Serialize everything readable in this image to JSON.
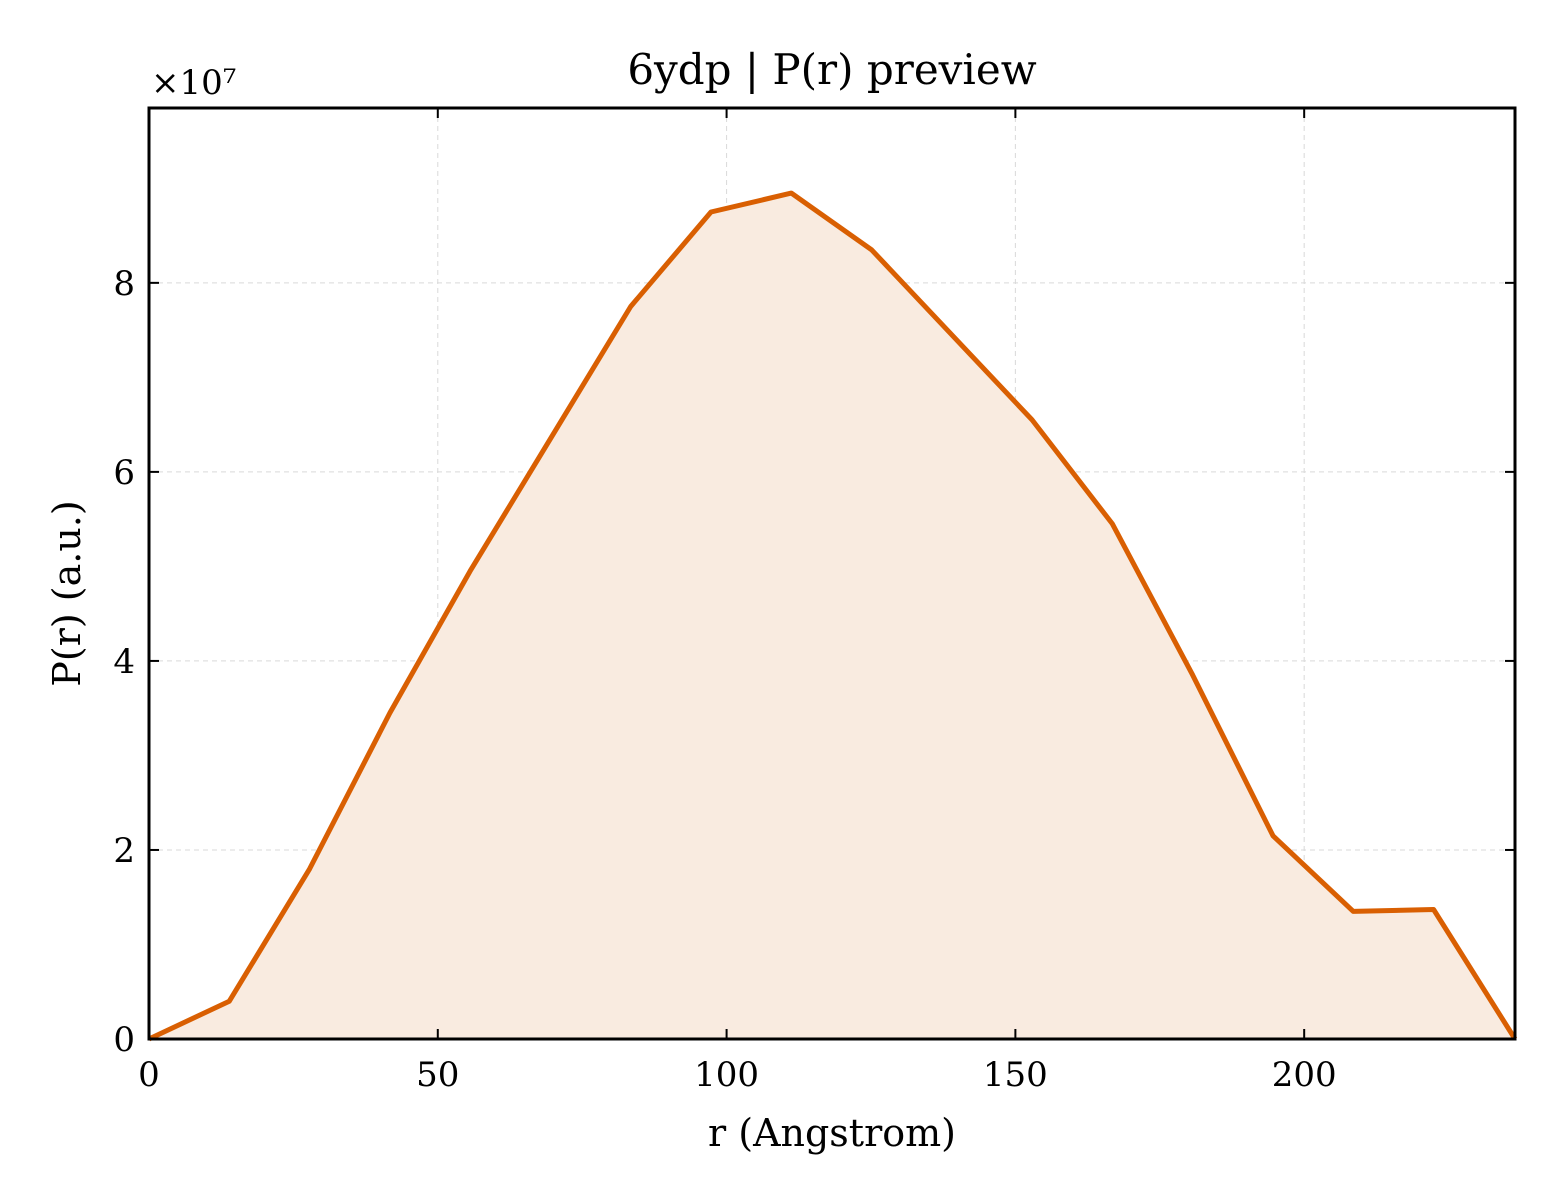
{
  "chart_data": {
    "type": "area",
    "title": "6ydp | P(r) preview",
    "xlabel": "r (Angstrom)",
    "ylabel": "P(r) (a.u.)",
    "y_multiplier_label": "×10⁷",
    "xlim": [
      0,
      236.5
    ],
    "ylim": [
      0,
      9.85
    ],
    "xticks": [
      0,
      50,
      100,
      150,
      200
    ],
    "xtick_labels": [
      "0",
      "50",
      "100",
      "150",
      "200"
    ],
    "yticks": [
      0,
      2,
      4,
      6,
      8
    ],
    "ytick_labels": [
      "0",
      "2",
      "4",
      "6",
      "8"
    ],
    "grid": true,
    "colors": {
      "line": "#d95f02",
      "fill": "#f9ebe0"
    },
    "x": [
      0,
      13.9,
      27.8,
      41.7,
      55.6,
      69.5,
      83.4,
      97.3,
      111.2,
      125.1,
      139.0,
      152.9,
      166.8,
      180.7,
      194.6,
      208.5,
      222.4,
      236.5
    ],
    "y": [
      0,
      0.4,
      1.8,
      3.45,
      4.95,
      6.35,
      7.75,
      8.75,
      8.95,
      8.35,
      7.45,
      6.55,
      5.45,
      3.85,
      2.15,
      1.35,
      1.37,
      0
    ]
  }
}
